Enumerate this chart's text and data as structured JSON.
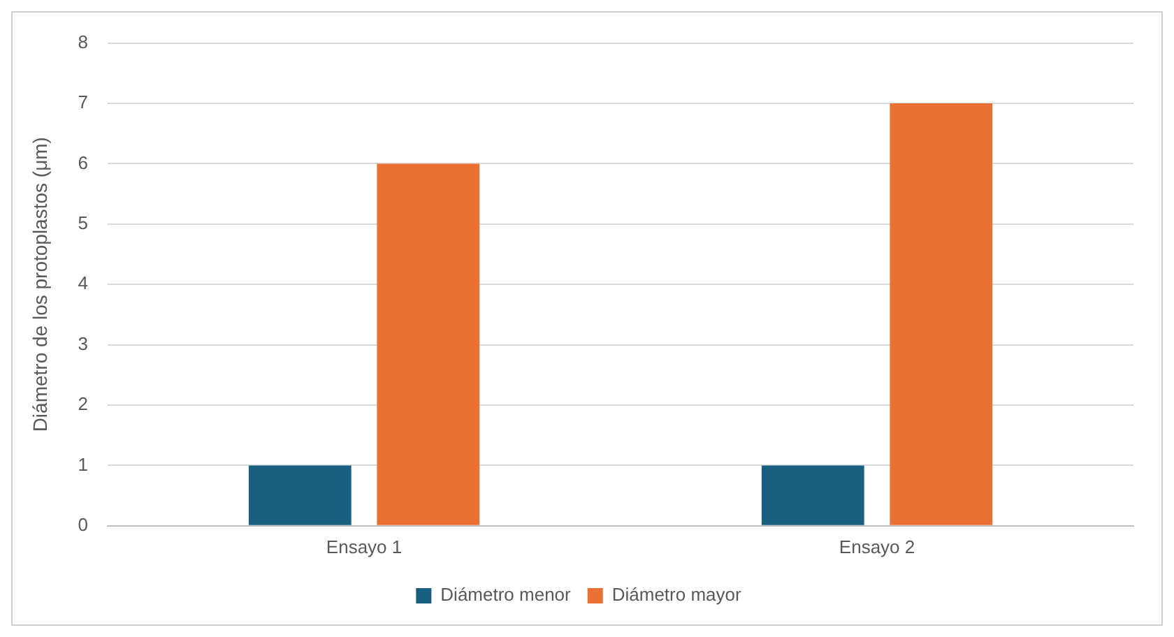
{
  "chart_data": {
    "type": "bar",
    "ylabel": "Diámetro de los protoplastos (μm)",
    "categories": [
      "Ensayo 1",
      "Ensayo 2"
    ],
    "series": [
      {
        "name": "Diámetro menor",
        "color": "#1a5f80",
        "values": [
          1,
          1
        ]
      },
      {
        "name": "Diámetro mayor",
        "color": "#ea7133",
        "values": [
          6,
          7
        ]
      }
    ],
    "ylim": [
      0,
      8
    ],
    "yticks": [
      0,
      1,
      2,
      3,
      4,
      5,
      6,
      7,
      8
    ],
    "grid": "y",
    "legend": "bottom"
  }
}
